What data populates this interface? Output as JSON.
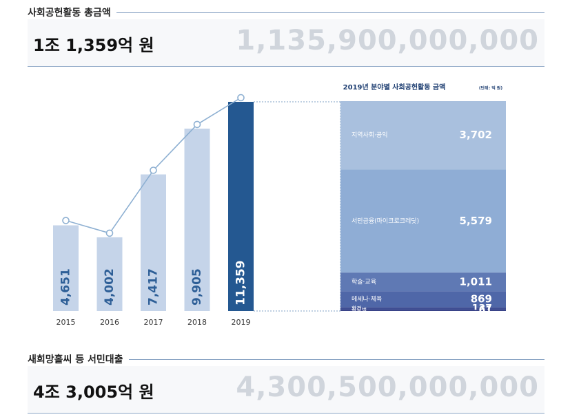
{
  "top_section": {
    "title": "사회공헌활동 총금액",
    "amount": "1조 1,359억 원",
    "big_number": "1,135,900,000,000"
  },
  "bottom_section": {
    "title": "새희망홀씨 등 서민대출",
    "amount": "4조 3,005억 원",
    "big_number": "4,300,500,000,000"
  },
  "colors": {
    "bar_light": "#c5d4e9",
    "bar_highlight": "#245891",
    "line": "#8eb0d2",
    "label_blue": "#2e5f97"
  },
  "chart_data": [
    {
      "type": "bar",
      "categories": [
        "2015",
        "2016",
        "2017",
        "2018",
        "2019"
      ],
      "values": [
        4651,
        4002,
        7417,
        9905,
        11359
      ],
      "labels": [
        "4,651",
        "4,002",
        "7,417",
        "9,905",
        "11,359"
      ],
      "highlight_index": 4,
      "line_overlay": true,
      "title": "",
      "xlabel": "",
      "ylabel": "",
      "ylim": [
        0,
        11359
      ]
    },
    {
      "type": "bar",
      "stacked": true,
      "title": "2019년 분야별 사회공헌활동 금액",
      "unit": "(단위: 억 원)",
      "segments": [
        {
          "name": "지역사회·공익",
          "value": 3702,
          "label": "3,702",
          "color": "#a9c0de"
        },
        {
          "name": "서민금융(마이크로크레딧)",
          "value": 5579,
          "label": "5,579",
          "color": "#8fadd5"
        },
        {
          "name": "학술·교육",
          "value": 1011,
          "label": "1,011",
          "color": "#5f79b4"
        },
        {
          "name": "메세나·체육",
          "value": 869,
          "label": "869",
          "color": "#4f67a8"
        },
        {
          "name": "환경",
          "value": 137,
          "label": "137",
          "color": "#3f4e93"
        },
        {
          "name": "글로벌",
          "value": 61,
          "label": "61",
          "color": "#353e85"
        }
      ]
    }
  ]
}
